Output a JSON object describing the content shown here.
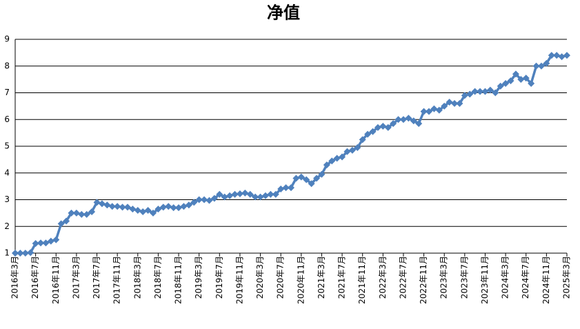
{
  "chart_data": {
    "type": "line",
    "title": "净值",
    "categories": [
      "2016年3月",
      null,
      null,
      null,
      "2016年7月",
      null,
      null,
      null,
      "2016年11月",
      null,
      null,
      null,
      "2017年3月",
      null,
      null,
      null,
      "2017年7月",
      null,
      null,
      null,
      "2017年11月",
      null,
      null,
      null,
      "2018年3月",
      null,
      null,
      null,
      "2018年7月",
      null,
      null,
      null,
      "2018年11月",
      null,
      null,
      null,
      "2019年3月",
      null,
      null,
      null,
      "2019年7月",
      null,
      null,
      null,
      "2019年11月",
      null,
      null,
      null,
      "2020年3月",
      null,
      null,
      null,
      "2020年7月",
      null,
      null,
      null,
      "2020年11月",
      null,
      null,
      null,
      "2021年3月",
      null,
      null,
      null,
      "2021年7月",
      null,
      null,
      null,
      "2021年11月",
      null,
      null,
      null,
      "2022年3月",
      null,
      null,
      null,
      "2022年7月",
      null,
      null,
      null,
      "2022年11月",
      null,
      null,
      null,
      "2023年3月",
      null,
      null,
      null,
      "2023年7月",
      null,
      null,
      null,
      "2023年11月",
      null,
      null,
      null,
      "2024年3月",
      null,
      null,
      null,
      "2024年7月",
      null,
      null,
      null,
      "2024年11月",
      null,
      null,
      null,
      "2025年3月"
    ],
    "values": [
      1.0,
      1.0,
      1.0,
      1.02,
      1.36,
      1.38,
      1.38,
      1.45,
      1.5,
      2.1,
      2.2,
      2.5,
      2.5,
      2.45,
      2.45,
      2.55,
      2.9,
      2.85,
      2.8,
      2.75,
      2.75,
      2.72,
      2.72,
      2.65,
      2.6,
      2.55,
      2.6,
      2.5,
      2.65,
      2.72,
      2.75,
      2.7,
      2.7,
      2.75,
      2.8,
      2.9,
      3.0,
      3.0,
      2.97,
      3.05,
      3.2,
      3.1,
      3.15,
      3.2,
      3.22,
      3.25,
      3.2,
      3.1,
      3.1,
      3.15,
      3.2,
      3.2,
      3.4,
      3.45,
      3.45,
      3.8,
      3.85,
      3.75,
      3.6,
      3.8,
      3.95,
      4.3,
      4.45,
      4.55,
      4.6,
      4.8,
      4.85,
      4.95,
      5.25,
      5.45,
      5.55,
      5.7,
      5.75,
      5.7,
      5.85,
      6.0,
      6.0,
      6.05,
      5.95,
      5.85,
      6.3,
      6.3,
      6.4,
      6.35,
      6.5,
      6.65,
      6.6,
      6.6,
      6.9,
      6.95,
      7.05,
      7.05,
      7.05,
      7.1,
      7.0,
      7.25,
      7.35,
      7.45,
      7.7,
      7.5,
      7.55,
      7.35,
      8.0,
      8.0,
      8.1,
      8.4,
      8.4,
      8.35,
      8.4
    ],
    "color": "#4f81bd",
    "ylim": [
      1,
      9
    ],
    "yticks": [
      1,
      2,
      3,
      4,
      5,
      6,
      7,
      8,
      9
    ],
    "grid": true
  }
}
